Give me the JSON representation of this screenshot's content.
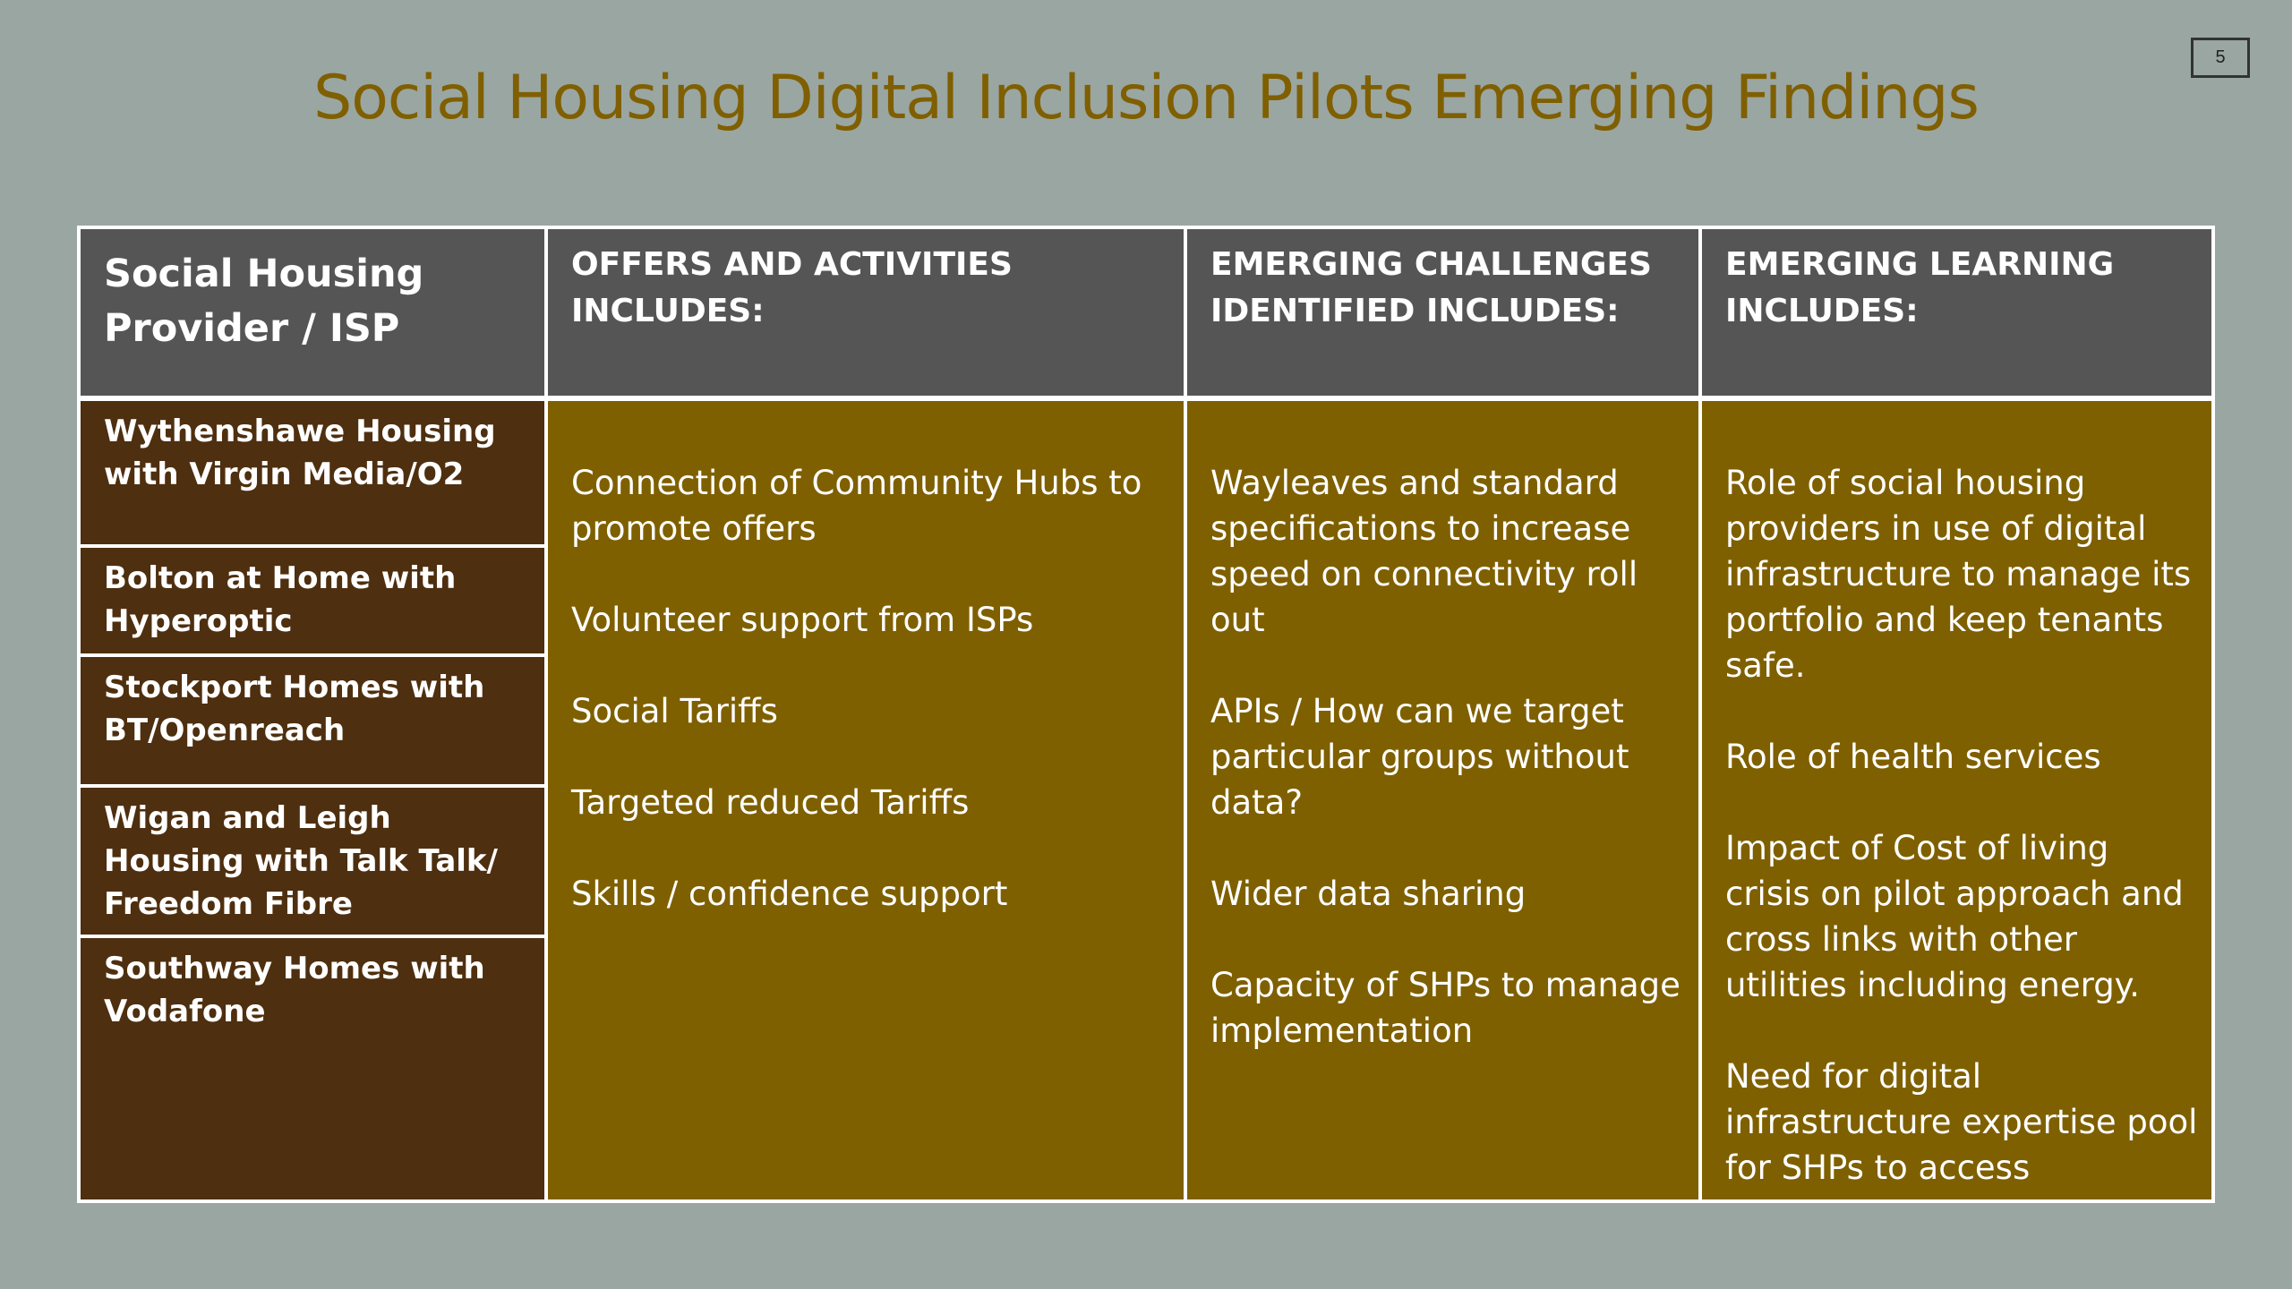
{
  "slide_number": "5",
  "title": "Social Housing Digital Inclusion Pilots Emerging Findings",
  "colors": {
    "background": "#9aa6a2",
    "title": "#7f5f00",
    "header_fill": "#555555",
    "provider_fill": "#4e2f0f",
    "body_fill": "#7f6000",
    "text": "#ffffff"
  },
  "table": {
    "headers": [
      "Social Housing Provider / ISP",
      "OFFERS AND ACTIVITIES INCLUDES:",
      "EMERGING CHALLENGES IDENTIFIED INCLUDES:",
      "EMERGING LEARNING INCLUDES:"
    ],
    "providers": [
      "Wythenshawe Housing with Virgin Media/O2",
      "Bolton at Home with Hyperoptic",
      "Stockport Homes with BT/Openreach",
      "Wigan and Leigh Housing with Talk Talk/ Freedom Fibre",
      "Southway Homes with Vodafone"
    ],
    "offers": [
      "Connection of Community Hubs to promote offers",
      "Volunteer support from ISPs",
      "Social Tariffs",
      "Targeted reduced Tariffs",
      "Skills / confidence support"
    ],
    "challenges": [
      "Wayleaves and standard specifications to increase speed on connectivity roll out",
      "APIs / How can we target particular groups without data?",
      "Wider data sharing",
      "Capacity of SHPs to manage implementation"
    ],
    "learning": [
      "Role of social housing providers in use of digital infrastructure to manage its portfolio and keep tenants safe.",
      "Role of health services",
      "Impact of Cost of living crisis on pilot approach and cross links with other utilities including energy.",
      "Need for digital infrastructure expertise pool for SHPs to access"
    ]
  }
}
